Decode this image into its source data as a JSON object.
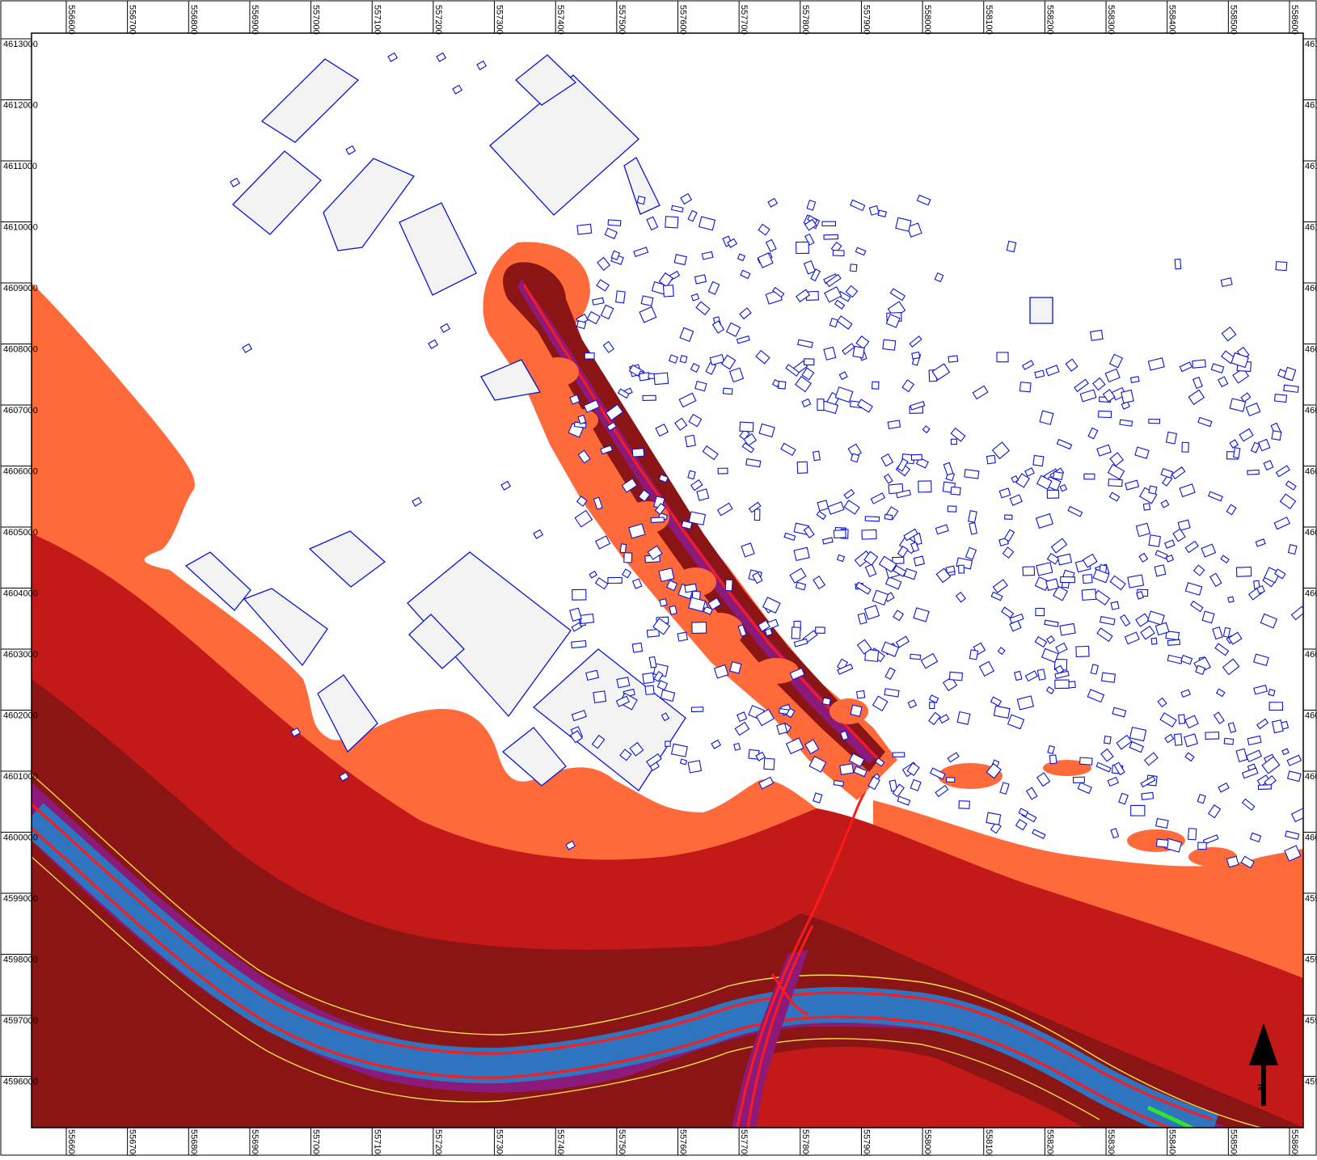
{
  "map": {
    "north_label": "N",
    "colors": {
      "frame": "#000000",
      "background": "#ffffff",
      "zone_light": "#ff6a3b",
      "zone_red": "#c41919",
      "zone_dark": "#8b1414",
      "zone_purple": "#8c1a7a",
      "zone_blue": "#2f74bf",
      "contour_yellow": "#f2e34a",
      "road_red": "#ff1a1a",
      "accent_green": "#2fe62f",
      "building_fill": "#f3f3f3",
      "building_stroke": "#0a14d8"
    },
    "x_axis_labels": [
      "556600",
      "556700",
      "556800",
      "556900",
      "557000",
      "557100",
      "557200",
      "557300",
      "557400",
      "557500",
      "557600",
      "557700",
      "557800",
      "557900",
      "558000",
      "558100",
      "558200",
      "558300",
      "558400",
      "558500",
      "558600"
    ],
    "y_axis_labels": [
      "4613000",
      "4612000",
      "4611000",
      "4610000",
      "4609000",
      "4608000",
      "4607000",
      "4606000",
      "4605000",
      "4604000",
      "4603000",
      "4602000",
      "4601000",
      "4600000",
      "4599000",
      "4598000",
      "4597000",
      "4596000"
    ]
  }
}
